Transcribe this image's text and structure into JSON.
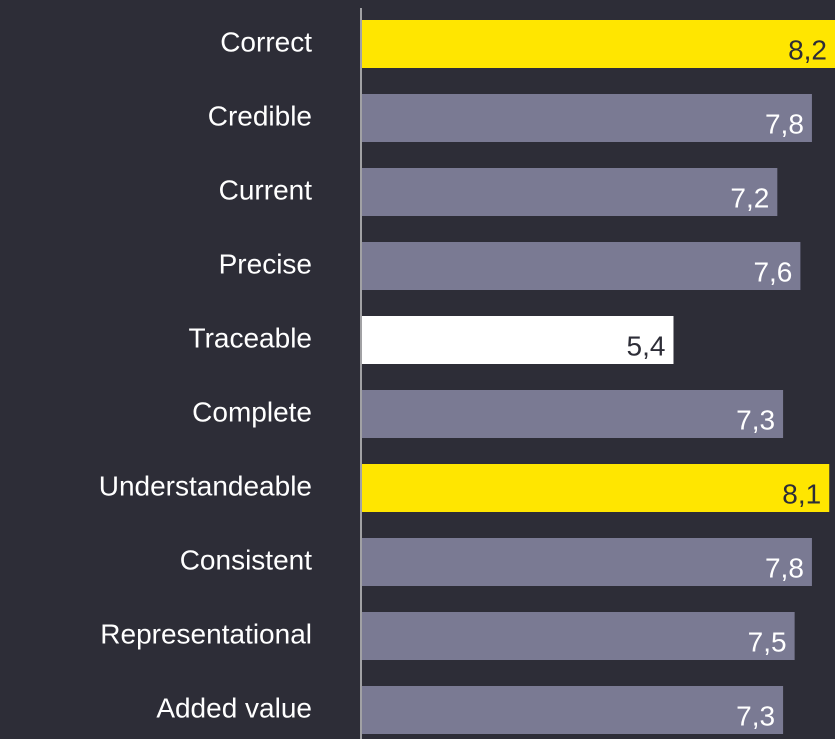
{
  "chart_data": {
    "type": "bar",
    "orientation": "horizontal",
    "categories": [
      "Correct",
      "Credible",
      "Current",
      "Precise",
      "Traceable",
      "Complete",
      "Understandeable",
      "Consistent",
      "Representational",
      "Added value"
    ],
    "values": [
      8.2,
      7.8,
      7.2,
      7.6,
      5.4,
      7.3,
      8.1,
      7.8,
      7.5,
      7.3
    ],
    "value_labels": [
      "8,2",
      "7,8",
      "7,2",
      "7,6",
      "5,4",
      "7,3",
      "8,1",
      "7,8",
      "7,5",
      "7,3"
    ],
    "colors": [
      "#ffe600",
      "#7a7a93",
      "#7a7a93",
      "#7a7a93",
      "#ffffff",
      "#7a7a93",
      "#ffe600",
      "#7a7a93",
      "#7a7a93",
      "#7a7a93"
    ]
  }
}
